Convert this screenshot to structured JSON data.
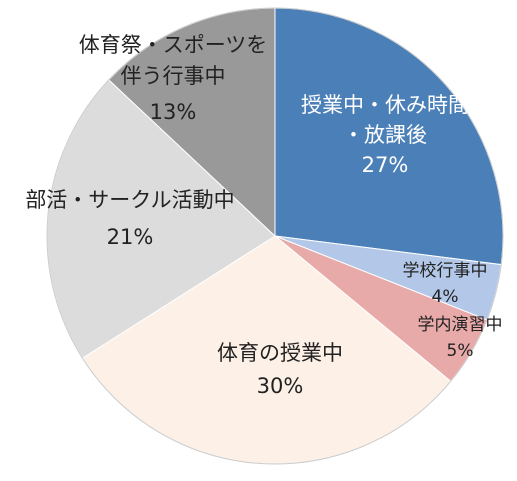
{
  "chart_data": {
    "type": "pie",
    "title": "",
    "start_angle_deg": 0,
    "direction": "clockwise",
    "slices": [
      {
        "label": [
          "授業中・休み時間",
          "・放課後"
        ],
        "value": 27,
        "value_text": "27%",
        "color": "#4a7fb8",
        "label_color": "#ffffff"
      },
      {
        "label": [
          "学校行事中"
        ],
        "value": 4,
        "value_text": "4%",
        "color": "#b3c8e8",
        "label_color": "#222222"
      },
      {
        "label": [
          "学内演習中"
        ],
        "value": 5,
        "value_text": "5%",
        "color": "#e8a9a9",
        "label_color": "#222222"
      },
      {
        "label": [
          "体育の授業中"
        ],
        "value": 30,
        "value_text": "30%",
        "color": "#fdf0e6",
        "label_color": "#222222"
      },
      {
        "label": [
          "部活・サークル活動中"
        ],
        "value": 21,
        "value_text": "21%",
        "color": "#dcdcdc",
        "label_color": "#222222"
      },
      {
        "label": [
          "体育祭・スポーツを",
          "伴う行事中"
        ],
        "value": 13,
        "value_text": "13%",
        "color": "#999999",
        "label_color": "#222222"
      }
    ]
  }
}
